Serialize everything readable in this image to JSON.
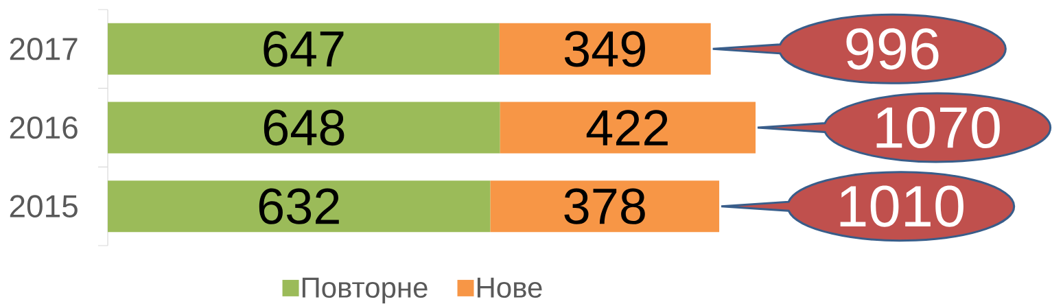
{
  "chart_data": {
    "type": "bar",
    "orientation": "horizontal",
    "stacked": true,
    "categories": [
      "2017",
      "2016",
      "2015"
    ],
    "series": [
      {
        "name": "Повторне",
        "color": "#9bbb59",
        "values": [
          647,
          648,
          632
        ]
      },
      {
        "name": "Нове",
        "color": "#f79646",
        "values": [
          349,
          422,
          378
        ]
      }
    ],
    "data_labels": true,
    "totals": [
      "996",
      "1070",
      "1010"
    ],
    "legend": "bottom",
    "tick_labels": "y"
  }
}
